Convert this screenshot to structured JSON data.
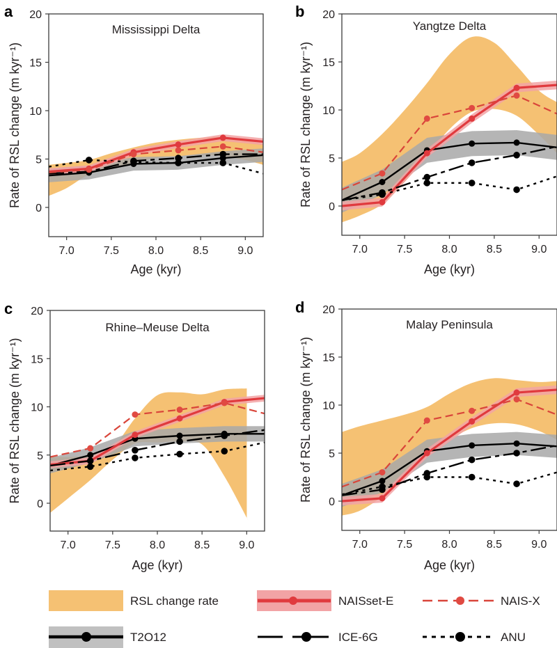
{
  "figure": {
    "legend": {
      "items": [
        {
          "key": "rsl",
          "label": "RSL change rate"
        },
        {
          "key": "naisset_e",
          "label": "NAISset-E"
        },
        {
          "key": "nais_x",
          "label": "NAIS-X"
        },
        {
          "key": "t2012",
          "label": "T2O12"
        },
        {
          "key": "ice6g",
          "label": "ICE-6G"
        },
        {
          "key": "anu",
          "label": "ANU"
        }
      ]
    },
    "colors": {
      "rsl_band": "#f5c173",
      "naisset_e": "#e03a3e",
      "naisset_e_band": "#f2a3a5",
      "nais_x": "#d9453a",
      "model_black": "#000000",
      "t2012_band": "#a8a8a8"
    }
  },
  "chart_data": [
    {
      "panel": "a",
      "type": "line",
      "title": "Mississippi Delta",
      "xlabel": "Age (kyr)",
      "ylabel": "Rate of RSL change (m kyr⁻¹)",
      "xlim": [
        6.8,
        9.2
      ],
      "ylim": [
        -3,
        20
      ],
      "xticks": [
        "7.0",
        "7.5",
        "8.0",
        "8.5",
        "9.0"
      ],
      "yticks": [
        "0",
        "5",
        "10",
        "15",
        "20"
      ],
      "x": [
        6.8,
        7.25,
        7.75,
        8.25,
        8.75,
        9.2
      ],
      "rsl_band": {
        "x": [
          6.8,
          7.0,
          7.25,
          7.5,
          7.75,
          8.0,
          8.25,
          8.5,
          8.75,
          9.0,
          9.2
        ],
        "upper": [
          4.4,
          4.6,
          4.9,
          5.6,
          6.2,
          6.7,
          7.0,
          7.2,
          7.3,
          6.9,
          6.6
        ],
        "lower": [
          1.2,
          2.0,
          3.4,
          4.0,
          4.6,
          5.1,
          5.3,
          5.4,
          5.3,
          4.9,
          4.4
        ]
      },
      "series": [
        {
          "name": "NAISset-E",
          "values": [
            3.7,
            4.0,
            5.7,
            6.5,
            7.2,
            6.8
          ],
          "band": 0.35
        },
        {
          "name": "NAIS-X",
          "values": [
            3.6,
            3.9,
            5.5,
            5.9,
            6.3,
            5.7
          ]
        },
        {
          "name": "T2O12",
          "values": [
            3.3,
            3.6,
            4.5,
            4.6,
            5.1,
            5.4
          ],
          "band": 0.7
        },
        {
          "name": "ICE-6G",
          "values": [
            3.5,
            3.7,
            4.8,
            5.1,
            5.5,
            5.5
          ]
        },
        {
          "name": "ANU",
          "values": [
            4.2,
            4.9,
            4.7,
            4.6,
            4.6,
            3.5
          ]
        }
      ]
    },
    {
      "panel": "b",
      "type": "line",
      "title": "Yangtze Delta",
      "xlabel": "Age (kyr)",
      "ylabel": "Rate of RSL change (m kyr⁻¹)",
      "xlim": [
        6.8,
        9.2
      ],
      "ylim": [
        -3,
        20
      ],
      "xticks": [
        "7.0",
        "7.5",
        "8.0",
        "8.5",
        "9.0"
      ],
      "yticks": [
        "0",
        "5",
        "10",
        "15",
        "20"
      ],
      "x": [
        6.8,
        7.25,
        7.75,
        8.25,
        8.75,
        9.2
      ],
      "rsl_band": {
        "x": [
          6.8,
          7.0,
          7.25,
          7.5,
          7.75,
          8.0,
          8.25,
          8.5,
          8.75,
          9.0,
          9.2
        ],
        "upper": [
          4.6,
          5.5,
          7.5,
          10.0,
          12.8,
          15.8,
          17.6,
          17.0,
          14.6,
          12.0,
          10.8
        ],
        "lower": [
          -1.7,
          -1.0,
          0.2,
          2.5,
          5.2,
          8.0,
          9.8,
          10.1,
          9.4,
          7.4,
          5.5
        ]
      },
      "series": [
        {
          "name": "NAISset-E",
          "values": [
            0.0,
            0.4,
            5.5,
            9.1,
            12.3,
            12.6
          ],
          "band": 0.45
        },
        {
          "name": "NAIS-X",
          "values": [
            1.7,
            3.4,
            9.1,
            10.2,
            11.5,
            9.6
          ]
        },
        {
          "name": "T2O12",
          "values": [
            0.6,
            2.5,
            5.8,
            6.5,
            6.6,
            6.1
          ],
          "band": 1.3
        },
        {
          "name": "ICE-6G",
          "values": [
            0.6,
            1.4,
            3.0,
            4.5,
            5.3,
            6.2
          ]
        },
        {
          "name": "ANU",
          "values": [
            0.6,
            1.2,
            2.4,
            2.4,
            1.7,
            3.1
          ]
        }
      ]
    },
    {
      "panel": "c",
      "type": "line",
      "title": "Rhine–Meuse Delta",
      "xlabel": "Age (kyr)",
      "ylabel": "Rate of RSL change (m kyr⁻¹)",
      "xlim": [
        6.8,
        9.2
      ],
      "ylim": [
        -3,
        20
      ],
      "xticks": [
        "7.0",
        "7.5",
        "8.0",
        "8.5",
        "9.0"
      ],
      "yticks": [
        "0",
        "5",
        "10",
        "15",
        "20"
      ],
      "x": [
        6.8,
        7.25,
        7.75,
        8.25,
        8.75,
        9.2
      ],
      "rsl_band": {
        "x": [
          6.8,
          7.0,
          7.25,
          7.5,
          7.75,
          8.0,
          8.25,
          8.5,
          8.75,
          9.0,
          9.001
        ],
        "upper": [
          4.8,
          4.8,
          5.0,
          5.8,
          8.8,
          11.2,
          11.5,
          11.3,
          11.8,
          11.9,
          11.9
        ],
        "lower": [
          -1.0,
          0.5,
          2.4,
          4.5,
          6.2,
          6.3,
          6.4,
          6.1,
          2.8,
          -1.5,
          -1.5
        ]
      },
      "series": [
        {
          "name": "NAISset-E",
          "values": [
            4.0,
            4.4,
            7.1,
            8.8,
            10.5,
            10.9
          ],
          "band": 0.35
        },
        {
          "name": "NAIS-X",
          "values": [
            4.8,
            5.7,
            9.2,
            9.7,
            10.4,
            9.3
          ]
        },
        {
          "name": "T2O12",
          "values": [
            3.9,
            5.0,
            6.7,
            7.0,
            7.2,
            7.2
          ],
          "band": 0.8
        },
        {
          "name": "ICE-6G",
          "values": [
            3.9,
            4.4,
            5.5,
            6.4,
            7.0,
            7.6
          ]
        },
        {
          "name": "ANU",
          "values": [
            3.4,
            3.8,
            4.7,
            5.1,
            5.4,
            6.3
          ]
        }
      ]
    },
    {
      "panel": "d",
      "type": "line",
      "title": "Malay Peninsula",
      "xlabel": "Age (kyr)",
      "ylabel": "Rate of RSL change (m kyr⁻¹)",
      "xlim": [
        6.8,
        9.2
      ],
      "ylim": [
        -3,
        20
      ],
      "xticks": [
        "7.0",
        "7.5",
        "8.0",
        "8.5",
        "9.0"
      ],
      "yticks": [
        "0",
        "5",
        "10",
        "15",
        "20"
      ],
      "x": [
        6.8,
        7.25,
        7.75,
        8.25,
        8.75,
        9.2
      ],
      "rsl_band": {
        "x": [
          6.8,
          7.0,
          7.25,
          7.5,
          7.75,
          8.0,
          8.25,
          8.5,
          8.75,
          9.0,
          9.2
        ],
        "upper": [
          7.2,
          7.8,
          8.4,
          9.0,
          9.8,
          11.2,
          12.3,
          12.8,
          12.6,
          12.4,
          12.5
        ],
        "lower": [
          -1.5,
          -1.0,
          0.5,
          2.8,
          4.8,
          6.4,
          7.6,
          8.1,
          8.0,
          7.3,
          6.4
        ]
      },
      "series": [
        {
          "name": "NAISset-E",
          "values": [
            0.0,
            0.3,
            5.0,
            8.3,
            11.3,
            11.6
          ],
          "band": 0.45
        },
        {
          "name": "NAIS-X",
          "values": [
            1.5,
            3.0,
            8.4,
            9.4,
            10.6,
            9.0
          ]
        },
        {
          "name": "T2O12",
          "values": [
            0.6,
            2.1,
            5.2,
            5.8,
            6.0,
            5.7
          ],
          "band": 1.2
        },
        {
          "name": "ICE-6G",
          "values": [
            0.6,
            1.2,
            2.9,
            4.3,
            5.0,
            5.8
          ]
        },
        {
          "name": "ANU",
          "values": [
            0.7,
            1.5,
            2.5,
            2.5,
            1.8,
            3.0
          ]
        }
      ]
    }
  ]
}
